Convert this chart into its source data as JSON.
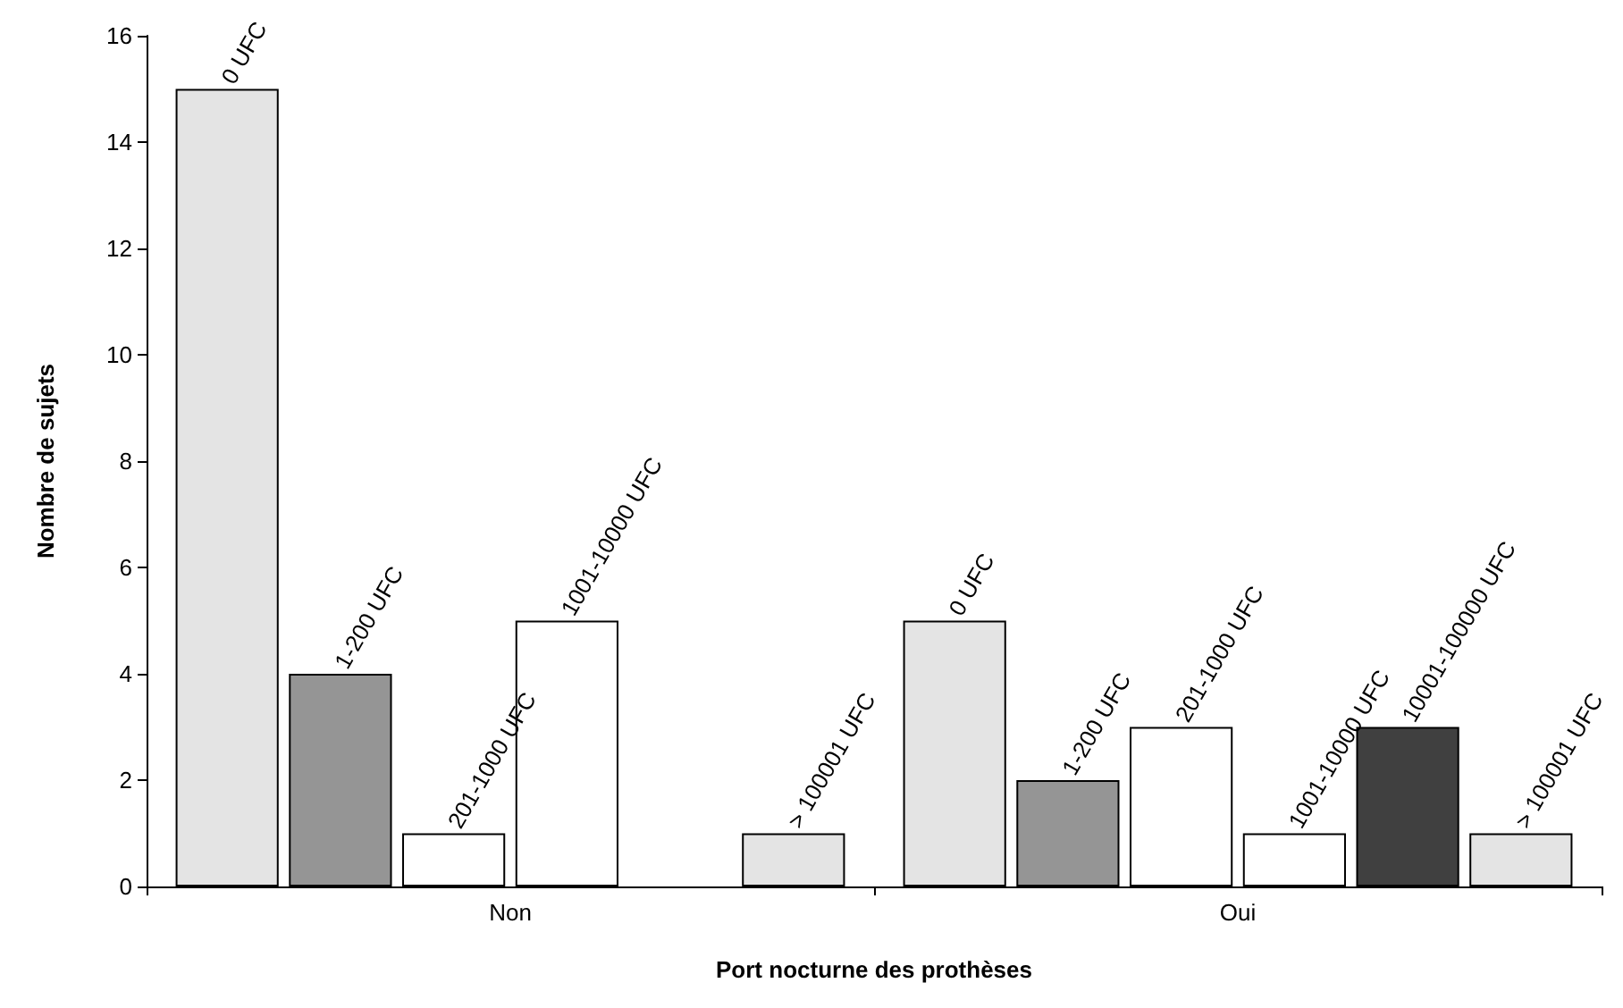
{
  "chart_data": {
    "type": "bar",
    "xlabel": "Port nocturne des prothèses",
    "ylabel": "Nombre de sujets",
    "categories": [
      "Non",
      "Oui"
    ],
    "series": [
      {
        "name": "0 UFC",
        "color": "#e4e4e4",
        "values": [
          15,
          5
        ]
      },
      {
        "name": "1-200 UFC",
        "color": "#959595",
        "values": [
          4,
          2
        ]
      },
      {
        "name": "201-1000 UFC",
        "color": "#ffffff",
        "values": [
          1,
          3
        ]
      },
      {
        "name": "1001-10000 UFC",
        "color": "#ffffff",
        "values": [
          5,
          1
        ]
      },
      {
        "name": "10001-100000 UFC",
        "color": "#404040",
        "values": [
          null,
          3
        ]
      },
      {
        "name": "> 100001 UFC",
        "color": "#e4e4e4",
        "values": [
          1,
          1
        ]
      }
    ],
    "ylim": [
      0,
      16
    ],
    "yticks": [
      0,
      2,
      4,
      6,
      8,
      10,
      12,
      14,
      16
    ],
    "grid": false,
    "legend": false
  }
}
